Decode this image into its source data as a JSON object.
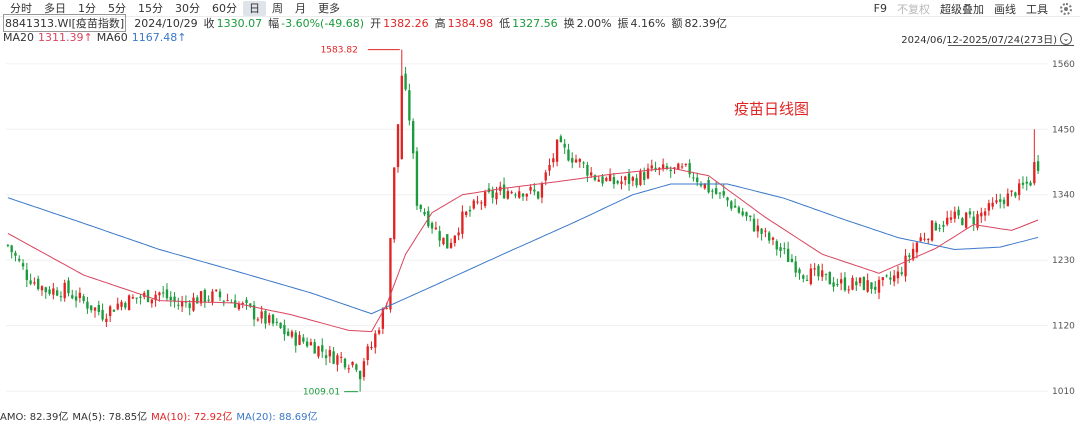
{
  "toolbar": {
    "periods": [
      "分时",
      "多日",
      "1分",
      "5分",
      "15分",
      "30分",
      "60分",
      "日",
      "周",
      "月",
      "更多"
    ],
    "active_period": "日",
    "tools": {
      "f9": "F9",
      "no_adjust": "不复权",
      "overlay": "超级叠加",
      "draw_line": "画线",
      "tools": "工具"
    }
  },
  "info": {
    "code_name": "8841313.WI[疫苗指数]",
    "date": "2024/10/29",
    "close_label": "收",
    "close": "1330.07",
    "change_label": "幅",
    "change": "-3.60%(-49.68)",
    "open_label": "开",
    "open": "1382.26",
    "high_label": "高",
    "high": "1384.98",
    "low_label": "低",
    "low": "1327.56",
    "turnover_label": "换",
    "turnover": "2.00%",
    "amplitude_label": "振",
    "amplitude": "4.16%",
    "amount_label": "额",
    "amount": "82.39亿"
  },
  "ma": {
    "ma20_label": "MA20",
    "ma20_value": "1311.39↑",
    "ma60_label": "MA60",
    "ma60_value": "1167.48↑"
  },
  "range": "2024/06/12-2025/07/24(273日)",
  "amo": {
    "amo": "AMO: 82.39亿",
    "ma5": "MA(5): 78.85亿",
    "ma10": "MA(10): 72.92亿",
    "ma20": "MA(20): 88.69亿"
  },
  "colors": {
    "up": "#e02424",
    "down": "#1a9b3c",
    "ma20": "#d9455f",
    "ma60": "#3a78c9"
  },
  "chart_data": {
    "type": "candlestick",
    "title": "疫苗日线图",
    "y_ticks": [
      1010,
      1120,
      1230,
      1340,
      1450,
      1560
    ],
    "ylim": [
      995,
      1590
    ],
    "n_days": 273,
    "grid": true,
    "max_label": "1583.82",
    "min_label": "1009.01",
    "close_path": [
      [
        0,
        1255
      ],
      [
        5,
        1205
      ],
      [
        10,
        1180
      ],
      [
        15,
        1180
      ],
      [
        20,
        1160
      ],
      [
        25,
        1140
      ],
      [
        30,
        1160
      ],
      [
        35,
        1168
      ],
      [
        40,
        1175
      ],
      [
        45,
        1155
      ],
      [
        50,
        1165
      ],
      [
        55,
        1170
      ],
      [
        60,
        1160
      ],
      [
        65,
        1140
      ],
      [
        70,
        1122
      ],
      [
        75,
        1100
      ],
      [
        80,
        1090
      ],
      [
        85,
        1070
      ],
      [
        88,
        1065
      ],
      [
        90,
        1060
      ],
      [
        93,
        1055
      ],
      [
        96,
        1085
      ],
      [
        100,
        1160
      ],
      [
        102,
        1380
      ],
      [
        104,
        1540
      ],
      [
        106,
        1470
      ],
      [
        108,
        1330
      ],
      [
        112,
        1290
      ],
      [
        116,
        1255
      ],
      [
        120,
        1300
      ],
      [
        125,
        1330
      ],
      [
        130,
        1345
      ],
      [
        135,
        1350
      ],
      [
        140,
        1340
      ],
      [
        145,
        1420
      ],
      [
        150,
        1400
      ],
      [
        155,
        1370
      ],
      [
        160,
        1360
      ],
      [
        165,
        1365
      ],
      [
        170,
        1380
      ],
      [
        175,
        1380
      ],
      [
        180,
        1380
      ],
      [
        185,
        1350
      ],
      [
        190,
        1330
      ],
      [
        195,
        1300
      ],
      [
        200,
        1270
      ],
      [
        205,
        1240
      ],
      [
        210,
        1210
      ],
      [
        215,
        1200
      ],
      [
        220,
        1190
      ],
      [
        225,
        1190
      ],
      [
        230,
        1185
      ],
      [
        235,
        1205
      ],
      [
        240,
        1260
      ],
      [
        245,
        1290
      ],
      [
        250,
        1300
      ],
      [
        255,
        1300
      ]
    ],
    "ma20_path": [
      [
        0,
        1275
      ],
      [
        20,
        1205
      ],
      [
        40,
        1162
      ],
      [
        60,
        1158
      ],
      [
        75,
        1138
      ],
      [
        90,
        1112
      ],
      [
        96,
        1110
      ],
      [
        100,
        1155
      ],
      [
        105,
        1240
      ],
      [
        112,
        1310
      ],
      [
        120,
        1340
      ],
      [
        130,
        1350
      ],
      [
        145,
        1362
      ],
      [
        160,
        1375
      ],
      [
        175,
        1385
      ],
      [
        185,
        1372
      ],
      [
        200,
        1302
      ],
      [
        215,
        1240
      ],
      [
        230,
        1208
      ],
      [
        245,
        1250
      ],
      [
        255,
        1290
      ],
      [
        265,
        1280
      ],
      [
        273,
        1300
      ]
    ],
    "ma60_path": [
      [
        0,
        1335
      ],
      [
        20,
        1292
      ],
      [
        40,
        1248
      ],
      [
        60,
        1212
      ],
      [
        80,
        1175
      ],
      [
        96,
        1140
      ],
      [
        110,
        1180
      ],
      [
        130,
        1238
      ],
      [
        150,
        1295
      ],
      [
        165,
        1340
      ],
      [
        175,
        1358
      ],
      [
        190,
        1358
      ],
      [
        205,
        1334
      ],
      [
        220,
        1300
      ],
      [
        235,
        1268
      ],
      [
        250,
        1248
      ],
      [
        262,
        1252
      ],
      [
        273,
        1270
      ]
    ]
  }
}
